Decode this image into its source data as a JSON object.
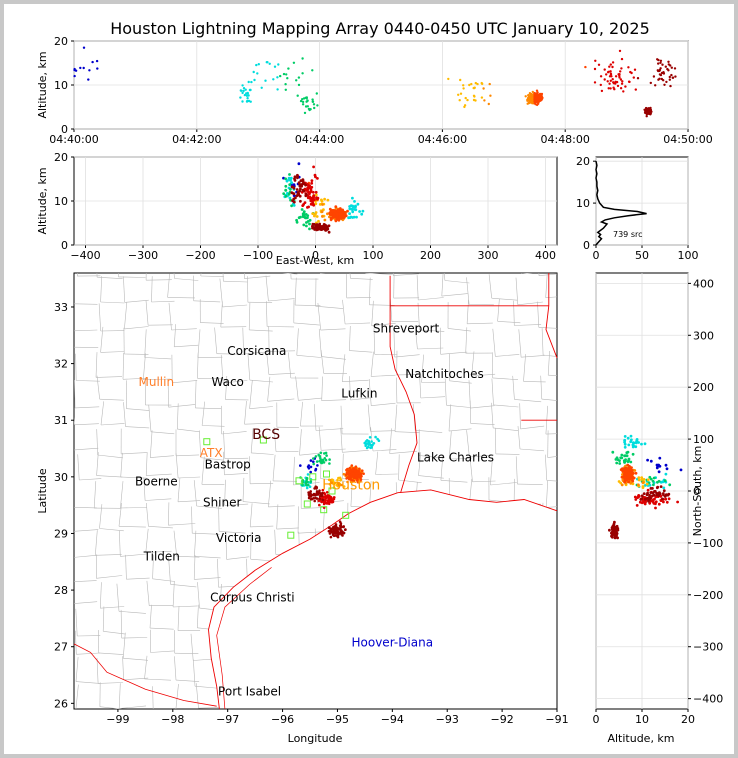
{
  "chart_data": [
    {
      "type": "scatter",
      "panel": "time-altitude",
      "title": "Houston Lightning Mapping Array 0440-0450 UTC January 10, 2025",
      "xlabel": "",
      "ylabel": "Altitude, km",
      "xlim": [
        "04:40:00",
        "04:50:00"
      ],
      "ylim": [
        0,
        20
      ],
      "xticks": [
        "04:40:00",
        "04:42:00",
        "04:44:00",
        "04:46:00",
        "04:48:00",
        "04:50:00"
      ],
      "yticks": [
        "0",
        "10",
        "20"
      ],
      "color_scale": "time: blue (early) → cyan → green → yellow → orange → red (late)",
      "grid": true
    },
    {
      "type": "scatter",
      "panel": "east-west-altitude",
      "xlabel": "East-West, km",
      "ylabel": "Altitude, km",
      "xlim": [
        -420,
        420
      ],
      "ylim": [
        0,
        20
      ],
      "xticks": [
        "−400",
        "−300",
        "−200",
        "−100",
        "0",
        "100",
        "200",
        "300",
        "400"
      ],
      "yticks": [
        "0",
        "10",
        "20"
      ],
      "grid": true
    },
    {
      "type": "line",
      "panel": "altitude-histogram",
      "xlabel": "",
      "ylabel": "",
      "xlim": [
        0,
        100
      ],
      "ylim": [
        0,
        21
      ],
      "xticks": [
        "0",
        "50",
        "100"
      ],
      "yticks": [
        "0",
        "10",
        "20"
      ],
      "annotation": "739 src",
      "points": [
        [
          0,
          0
        ],
        [
          2,
          0.5
        ],
        [
          4,
          1
        ],
        [
          6,
          1.5
        ],
        [
          3,
          2
        ],
        [
          5,
          2.5
        ],
        [
          2,
          3
        ],
        [
          8,
          4
        ],
        [
          12,
          5
        ],
        [
          6,
          5.5
        ],
        [
          10,
          6
        ],
        [
          20,
          6.5
        ],
        [
          35,
          7
        ],
        [
          55,
          7.5
        ],
        [
          45,
          8
        ],
        [
          20,
          8.5
        ],
        [
          8,
          9
        ],
        [
          4,
          10
        ],
        [
          2,
          11
        ],
        [
          1,
          12
        ],
        [
          2,
          13
        ],
        [
          1,
          14
        ],
        [
          1,
          15
        ],
        [
          0,
          16
        ],
        [
          1,
          17
        ],
        [
          0,
          18
        ],
        [
          1,
          19
        ],
        [
          0,
          20
        ]
      ]
    },
    {
      "type": "scatter",
      "panel": "map",
      "xlabel": "Longitude",
      "ylabel": "Latitude",
      "xlim": [
        -99.8,
        -91
      ],
      "ylim": [
        25.9,
        33.6
      ],
      "xticks": [
        "−99",
        "−98",
        "−97",
        "−96",
        "−95",
        "−94",
        "−93",
        "−92",
        "−91"
      ],
      "yticks": [
        "26",
        "27",
        "28",
        "29",
        "30",
        "31",
        "32",
        "33"
      ],
      "grid": false
    },
    {
      "type": "scatter",
      "panel": "altitude-north-south",
      "xlabel": "Altitude, km",
      "ylabel": "North-South, km",
      "xlim": [
        0,
        20
      ],
      "ylim": [
        -420,
        420
      ],
      "xticks": [
        "0",
        "10",
        "20"
      ],
      "yticks": [
        "−400",
        "−300",
        "−200",
        "−100",
        "0",
        "100",
        "200",
        "300",
        "400"
      ],
      "grid": true
    }
  ],
  "map_labels": [
    {
      "text": "Shreveport",
      "lon": -93.75,
      "lat": 32.55,
      "color": "#000000"
    },
    {
      "text": "Corsicana",
      "lon": -96.47,
      "lat": 32.15,
      "color": "#000000"
    },
    {
      "text": "Natchitoches",
      "lon": -93.05,
      "lat": 31.75,
      "color": "#000000"
    },
    {
      "text": "Mullin",
      "lon": -98.3,
      "lat": 31.6,
      "color": "#ff7f2a"
    },
    {
      "text": "Waco",
      "lon": -97.0,
      "lat": 31.6,
      "color": "#000000"
    },
    {
      "text": "Lufkin",
      "lon": -94.6,
      "lat": 31.4,
      "color": "#000000"
    },
    {
      "text": "BCS",
      "lon": -96.3,
      "lat": 30.67,
      "color": "#550000"
    },
    {
      "text": "ATX",
      "lon": -97.3,
      "lat": 30.35,
      "color": "#ff7f2a"
    },
    {
      "text": "Bastrop",
      "lon": -97.0,
      "lat": 30.15,
      "color": "#000000"
    },
    {
      "text": "Lake Charles",
      "lon": -92.85,
      "lat": 30.27,
      "color": "#000000"
    },
    {
      "text": "Boerne",
      "lon": -98.3,
      "lat": 29.85,
      "color": "#000000"
    },
    {
      "text": "Houston",
      "lon": -94.75,
      "lat": 29.78,
      "color": "#ff9900"
    },
    {
      "text": "Shiner",
      "lon": -97.1,
      "lat": 29.48,
      "color": "#000000"
    },
    {
      "text": "Victoria",
      "lon": -96.8,
      "lat": 28.85,
      "color": "#000000"
    },
    {
      "text": "Tilden",
      "lon": -98.2,
      "lat": 28.52,
      "color": "#000000"
    },
    {
      "text": "Corpus Christi",
      "lon": -96.55,
      "lat": 27.8,
      "color": "#000000"
    },
    {
      "text": "Hoover-Diana",
      "lon": -94.0,
      "lat": 27.0,
      "color": "#0000cc"
    },
    {
      "text": "Port Isabel",
      "lon": -96.6,
      "lat": 26.14,
      "color": "#000000"
    }
  ],
  "stations": [
    {
      "lon": -97.38,
      "lat": 30.62
    },
    {
      "lon": -96.35,
      "lat": 30.65
    },
    {
      "lon": -95.7,
      "lat": 29.93
    },
    {
      "lon": -95.45,
      "lat": 30.0
    },
    {
      "lon": -95.55,
      "lat": 29.52
    },
    {
      "lon": -95.25,
      "lat": 29.42
    },
    {
      "lon": -94.85,
      "lat": 29.32
    },
    {
      "lon": -95.85,
      "lat": 28.97
    },
    {
      "lon": -95.1,
      "lat": 29.75
    },
    {
      "lon": -95.2,
      "lat": 30.05
    }
  ]
}
